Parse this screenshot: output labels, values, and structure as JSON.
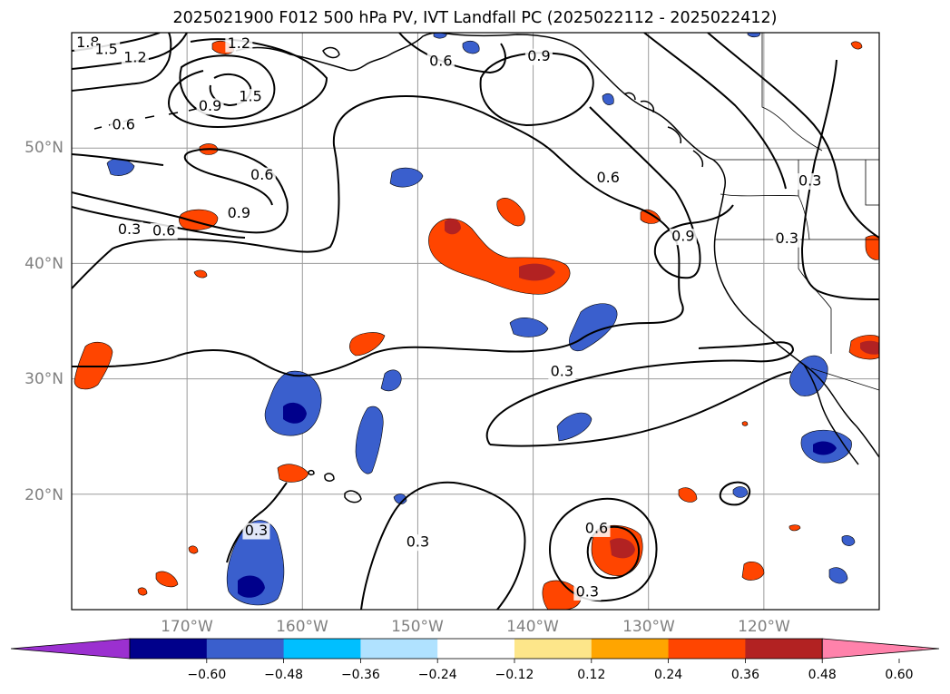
{
  "title": "2025021900 F012 500 hPa PV, IVT Landfall PC (2025022112 - 2025022412)",
  "map": {
    "lon_range": [
      -180,
      -110
    ],
    "lat_range": [
      10,
      60
    ],
    "lat_labels": [
      "50°N",
      "40°N",
      "30°N",
      "20°N"
    ],
    "lon_labels": [
      "170°W",
      "160°W",
      "150°W",
      "140°W",
      "130°W",
      "120°W"
    ],
    "contour_labels": [
      {
        "text": "1.8",
        "lon": -178.6,
        "lat": 59.1
      },
      {
        "text": "1.5",
        "lon": -177.0,
        "lat": 58.5
      },
      {
        "text": "1.2",
        "lon": -174.5,
        "lat": 57.8
      },
      {
        "text": "1.2",
        "lon": -165.5,
        "lat": 59.0
      },
      {
        "text": "1.5",
        "lon": -164.5,
        "lat": 54.4
      },
      {
        "text": "0.9",
        "lon": -168.0,
        "lat": 53.6
      },
      {
        "text": "0.6",
        "lon": -175.5,
        "lat": 52.0
      },
      {
        "text": "0.6",
        "lon": -148.0,
        "lat": 57.5
      },
      {
        "text": "0.9",
        "lon": -139.5,
        "lat": 57.9
      },
      {
        "text": "0.6",
        "lon": -163.5,
        "lat": 47.6
      },
      {
        "text": "0.9",
        "lon": -165.5,
        "lat": 44.3
      },
      {
        "text": "0.6",
        "lon": -172.0,
        "lat": 42.8
      },
      {
        "text": "0.3",
        "lon": -175.0,
        "lat": 42.9
      },
      {
        "text": "0.6",
        "lon": -133.5,
        "lat": 47.4
      },
      {
        "text": "0.9",
        "lon": -127.0,
        "lat": 42.3
      },
      {
        "text": "0.3",
        "lon": -116.0,
        "lat": 47.1
      },
      {
        "text": "0.3",
        "lon": -118.0,
        "lat": 42.1
      },
      {
        "text": "0.3",
        "lon": -137.5,
        "lat": 30.6
      },
      {
        "text": "0.3",
        "lon": -164.0,
        "lat": 16.8
      },
      {
        "text": "0.3",
        "lon": -150.0,
        "lat": 15.8
      },
      {
        "text": "0.6",
        "lon": -134.5,
        "lat": 17.0
      },
      {
        "text": "0.3",
        "lon": -135.3,
        "lat": 11.5
      }
    ]
  },
  "colorbar": {
    "tick_labels": [
      "−0.60",
      "−0.48",
      "−0.36",
      "−0.24",
      "−0.12",
      "0.12",
      "0.24",
      "0.36",
      "0.48",
      "0.60"
    ],
    "bins": [
      {
        "color": "#9b30d0"
      },
      {
        "color": "#00008b"
      },
      {
        "color": "#3a5fcd"
      },
      {
        "color": "#00bfff"
      },
      {
        "color": "#b0e2ff"
      },
      {
        "color": "#ffffff"
      },
      {
        "color": "#fde68a"
      },
      {
        "color": "#ffa500"
      },
      {
        "color": "#ff4500"
      },
      {
        "color": "#b22222"
      },
      {
        "color": "#ff82ab"
      }
    ]
  }
}
